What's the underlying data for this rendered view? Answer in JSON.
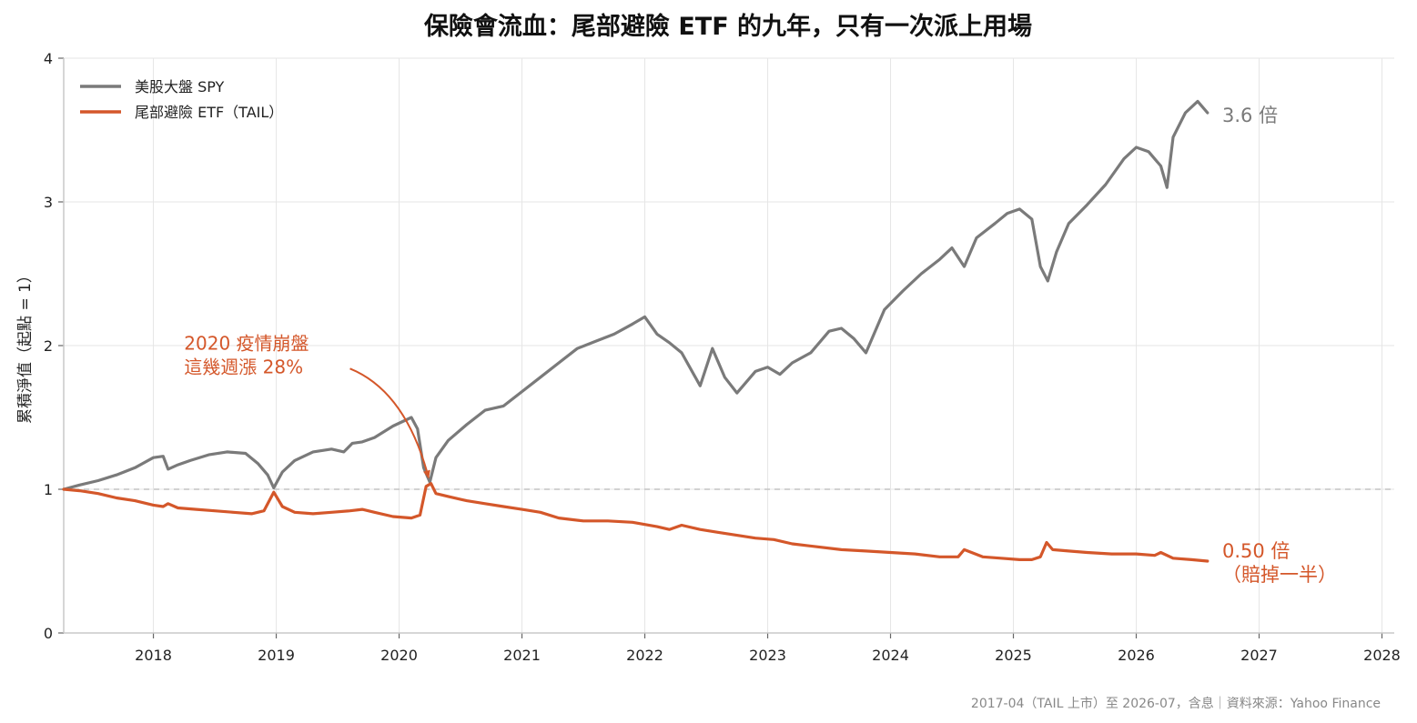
{
  "chart_data": {
    "type": "line",
    "title": "保險會流血：尾部避險 ETF 的九年，只有一次派上用場",
    "ylabel": "累積淨值（起點 = 1）",
    "xlabel": "",
    "xlim": [
      2017.27,
      2028.1
    ],
    "ylim": [
      0,
      4
    ],
    "x_ticks": [
      "2018",
      "2019",
      "2020",
      "2021",
      "2022",
      "2023",
      "2024",
      "2025",
      "2026",
      "2027",
      "2028"
    ],
    "y_ticks": [
      "0",
      "1",
      "2",
      "3",
      "4"
    ],
    "grid": true,
    "legend_position": "top-left",
    "reference_line_y": 1,
    "series": [
      {
        "name": "美股大盤 SPY",
        "color": "#7a7a7a",
        "x": [
          2017.27,
          2017.4,
          2017.55,
          2017.7,
          2017.85,
          2018.0,
          2018.08,
          2018.12,
          2018.2,
          2018.3,
          2018.45,
          2018.6,
          2018.75,
          2018.85,
          2018.93,
          2018.98,
          2019.05,
          2019.15,
          2019.3,
          2019.45,
          2019.55,
          2019.62,
          2019.7,
          2019.8,
          2019.95,
          2020.1,
          2020.15,
          2020.2,
          2020.25,
          2020.3,
          2020.4,
          2020.55,
          2020.7,
          2020.85,
          2021.0,
          2021.15,
          2021.3,
          2021.45,
          2021.6,
          2021.75,
          2021.9,
          2022.0,
          2022.1,
          2022.2,
          2022.3,
          2022.45,
          2022.55,
          2022.65,
          2022.75,
          2022.9,
          2023.0,
          2023.1,
          2023.2,
          2023.35,
          2023.5,
          2023.6,
          2023.7,
          2023.8,
          2023.95,
          2024.1,
          2024.25,
          2024.4,
          2024.5,
          2024.6,
          2024.7,
          2024.85,
          2024.95,
          2025.05,
          2025.15,
          2025.22,
          2025.28,
          2025.35,
          2025.45,
          2025.6,
          2025.75,
          2025.9,
          2026.0,
          2026.1,
          2026.2,
          2026.25,
          2026.3,
          2026.4,
          2026.5,
          2026.58
        ],
        "values": [
          1.0,
          1.03,
          1.06,
          1.1,
          1.15,
          1.22,
          1.23,
          1.14,
          1.17,
          1.2,
          1.24,
          1.26,
          1.25,
          1.18,
          1.1,
          1.01,
          1.12,
          1.2,
          1.26,
          1.28,
          1.26,
          1.32,
          1.33,
          1.36,
          1.44,
          1.5,
          1.42,
          1.15,
          1.05,
          1.22,
          1.34,
          1.45,
          1.55,
          1.58,
          1.68,
          1.78,
          1.88,
          1.98,
          2.03,
          2.08,
          2.15,
          2.2,
          2.08,
          2.02,
          1.95,
          1.72,
          1.98,
          1.78,
          1.67,
          1.82,
          1.85,
          1.8,
          1.88,
          1.95,
          2.1,
          2.12,
          2.05,
          1.95,
          2.25,
          2.38,
          2.5,
          2.6,
          2.68,
          2.55,
          2.75,
          2.85,
          2.92,
          2.95,
          2.88,
          2.55,
          2.45,
          2.65,
          2.85,
          2.98,
          3.12,
          3.3,
          3.38,
          3.35,
          3.25,
          3.1,
          3.45,
          3.62,
          3.7,
          3.62
        ]
      },
      {
        "name": "尾部避險 ETF（TAIL）",
        "color": "#d4572a",
        "x": [
          2017.27,
          2017.4,
          2017.55,
          2017.7,
          2017.85,
          2018.0,
          2018.08,
          2018.12,
          2018.2,
          2018.35,
          2018.5,
          2018.65,
          2018.8,
          2018.9,
          2018.98,
          2019.05,
          2019.15,
          2019.3,
          2019.45,
          2019.6,
          2019.7,
          2019.8,
          2019.95,
          2020.1,
          2020.17,
          2020.22,
          2020.26,
          2020.3,
          2020.4,
          2020.55,
          2020.7,
          2020.85,
          2021.0,
          2021.15,
          2021.3,
          2021.5,
          2021.7,
          2021.9,
          2022.1,
          2022.2,
          2022.3,
          2022.45,
          2022.6,
          2022.75,
          2022.9,
          2023.05,
          2023.2,
          2023.4,
          2023.6,
          2023.8,
          2024.0,
          2024.2,
          2024.4,
          2024.55,
          2024.6,
          2024.75,
          2024.9,
          2025.05,
          2025.15,
          2025.22,
          2025.27,
          2025.32,
          2025.45,
          2025.6,
          2025.8,
          2026.0,
          2026.15,
          2026.2,
          2026.3,
          2026.45,
          2026.58
        ],
        "values": [
          1.0,
          0.99,
          0.97,
          0.94,
          0.92,
          0.89,
          0.88,
          0.9,
          0.87,
          0.86,
          0.85,
          0.84,
          0.83,
          0.85,
          0.98,
          0.88,
          0.84,
          0.83,
          0.84,
          0.85,
          0.86,
          0.84,
          0.81,
          0.8,
          0.82,
          1.02,
          1.04,
          0.97,
          0.95,
          0.92,
          0.9,
          0.88,
          0.86,
          0.84,
          0.8,
          0.78,
          0.78,
          0.77,
          0.74,
          0.72,
          0.75,
          0.72,
          0.7,
          0.68,
          0.66,
          0.65,
          0.62,
          0.6,
          0.58,
          0.57,
          0.56,
          0.55,
          0.53,
          0.53,
          0.58,
          0.53,
          0.52,
          0.51,
          0.51,
          0.53,
          0.63,
          0.58,
          0.57,
          0.56,
          0.55,
          0.55,
          0.54,
          0.56,
          0.52,
          0.51,
          0.5
        ]
      }
    ],
    "annotations": [
      {
        "lines": [
          "2020 疫情崩盤",
          "這幾週漲 28%"
        ],
        "arrow_from": [
          2019.6,
          1.84
        ],
        "arrow_to": [
          2020.24,
          1.08
        ],
        "text_at": [
          2018.25,
          1.97
        ],
        "color": "#d4572a"
      }
    ],
    "end_labels": [
      {
        "lines": [
          "3.6 倍"
        ],
        "x": 2026.7,
        "y": 3.6,
        "color": "#7a7a7a"
      },
      {
        "lines": [
          "0.50 倍",
          "（賠掉一半）"
        ],
        "x": 2026.7,
        "y": 0.57,
        "color": "#d4572a"
      }
    ],
    "footer": "2017-04（TAIL 上市）至 2026-07，含息｜資料來源：Yahoo Finance"
  }
}
